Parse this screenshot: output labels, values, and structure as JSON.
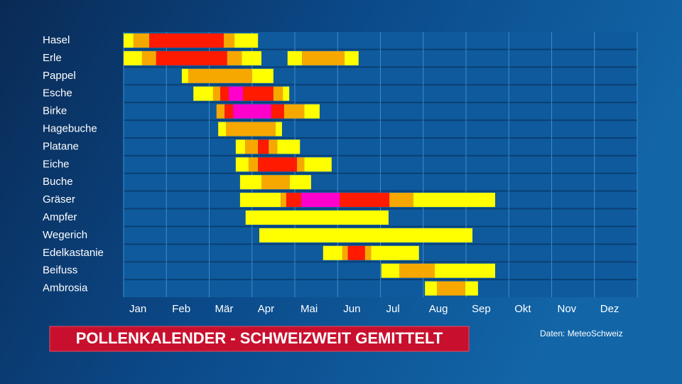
{
  "chart_data": {
    "type": "timeline",
    "title": "POLLENKALENDER - SCHWEIZWEIT GEMITTELT",
    "source": "Daten: MeteoSchweiz",
    "xlim": [
      0,
      12
    ],
    "xticks": [
      {
        "value": 0,
        "label": "Jan"
      },
      {
        "value": 1,
        "label": "Feb"
      },
      {
        "value": 2,
        "label": "Mär"
      },
      {
        "value": 3,
        "label": "Apr"
      },
      {
        "value": 4,
        "label": "Mai"
      },
      {
        "value": 5,
        "label": "Jun"
      },
      {
        "value": 6,
        "label": "Jul"
      },
      {
        "value": 7,
        "label": "Aug"
      },
      {
        "value": 8,
        "label": "Sep"
      },
      {
        "value": 9,
        "label": "Okt"
      },
      {
        "value": 10,
        "label": "Nov"
      },
      {
        "value": 11,
        "label": "Dez"
      }
    ],
    "grid": true,
    "rows": [
      {
        "name": "Hasel",
        "edges": [
          0,
          0.23,
          0.6,
          2.34,
          2.59,
          3.14
        ],
        "colors": [
          "#ffff00",
          "#f7a800",
          "#ff1a00",
          "#f7a800",
          "#ffff00"
        ]
      },
      {
        "name": "Erle",
        "edges": [
          0,
          0.43,
          0.76,
          2.42,
          2.76,
          3.22,
          3.83,
          4.17,
          5.16,
          5.49
        ],
        "colors": [
          "#ffff00",
          "#f7a800",
          "#ff1a00",
          "#f7a800",
          "#ffff00",
          null,
          "#ffff00",
          "#f7a800",
          "#ffff00"
        ]
      },
      {
        "name": "Pappel",
        "edges": [
          1.36,
          1.51,
          3.0,
          3.5
        ],
        "colors": [
          "#ffff00",
          "#f7a800",
          "#ffff00"
        ]
      },
      {
        "name": "Esche",
        "edges": [
          1.63,
          2.09,
          2.26,
          2.46,
          2.79,
          3.5,
          3.72,
          3.87
        ],
        "colors": [
          "#ffff00",
          "#f7a800",
          "#ff1a00",
          "#ff00cc",
          "#ff1a00",
          "#f7a800",
          "#ffff00"
        ]
      },
      {
        "name": "Birke",
        "edges": [
          2.17,
          2.36,
          2.56,
          3.45,
          3.75,
          4.22,
          4.58
        ],
        "colors": [
          "#f7a800",
          "#ff1a00",
          "#ff00cc",
          "#ff1a00",
          "#f7a800",
          "#ffff00"
        ]
      },
      {
        "name": "Hagebuche",
        "edges": [
          2.21,
          2.39,
          3.55,
          3.7
        ],
        "colors": [
          "#ffff00",
          "#f7a800",
          "#ffff00"
        ]
      },
      {
        "name": "Platane",
        "edges": [
          2.62,
          2.84,
          3.14,
          3.39,
          3.59,
          4.12
        ],
        "colors": [
          "#ffff00",
          "#f7a800",
          "#ff1a00",
          "#f7a800",
          "#ffff00"
        ]
      },
      {
        "name": "Eiche",
        "edges": [
          2.62,
          2.92,
          3.14,
          4.05,
          4.22,
          4.86
        ],
        "colors": [
          "#ffff00",
          "#f7a800",
          "#ff1a00",
          "#f7a800",
          "#ffff00"
        ]
      },
      {
        "name": "Buche",
        "edges": [
          2.72,
          3.22,
          3.88,
          4.38
        ],
        "colors": [
          "#ffff00",
          "#f7a800",
          "#ffff00"
        ]
      },
      {
        "name": "Gräser",
        "edges": [
          2.72,
          3.67,
          3.8,
          4.15,
          5.05,
          6.21,
          6.77,
          8.68
        ],
        "colors": [
          "#ffff00",
          "#f7a800",
          "#ff1a00",
          "#ff00cc",
          "#ff1a00",
          "#f7a800",
          "#ffff00"
        ]
      },
      {
        "name": "Ampfer",
        "edges": [
          2.85,
          6.19
        ],
        "colors": [
          "#ffff00"
        ]
      },
      {
        "name": "Wegerich",
        "edges": [
          3.17,
          8.15
        ],
        "colors": [
          "#ffff00"
        ]
      },
      {
        "name": "Edelkastanie",
        "edges": [
          4.66,
          5.11,
          5.24,
          5.64,
          5.78,
          6.9
        ],
        "colors": [
          "#ffff00",
          "#f7a800",
          "#ff1a00",
          "#f7a800",
          "#ffff00"
        ]
      },
      {
        "name": "Beifuss",
        "edges": [
          6.02,
          6.44,
          7.27,
          8.68
        ],
        "colors": [
          "#ffff00",
          "#f7a800",
          "#ffff00"
        ]
      },
      {
        "name": "Ambrosia",
        "edges": [
          7.04,
          7.32,
          7.98,
          8.28
        ],
        "colors": [
          "#ffff00",
          "#f7a800",
          "#ffff00"
        ]
      }
    ]
  }
}
